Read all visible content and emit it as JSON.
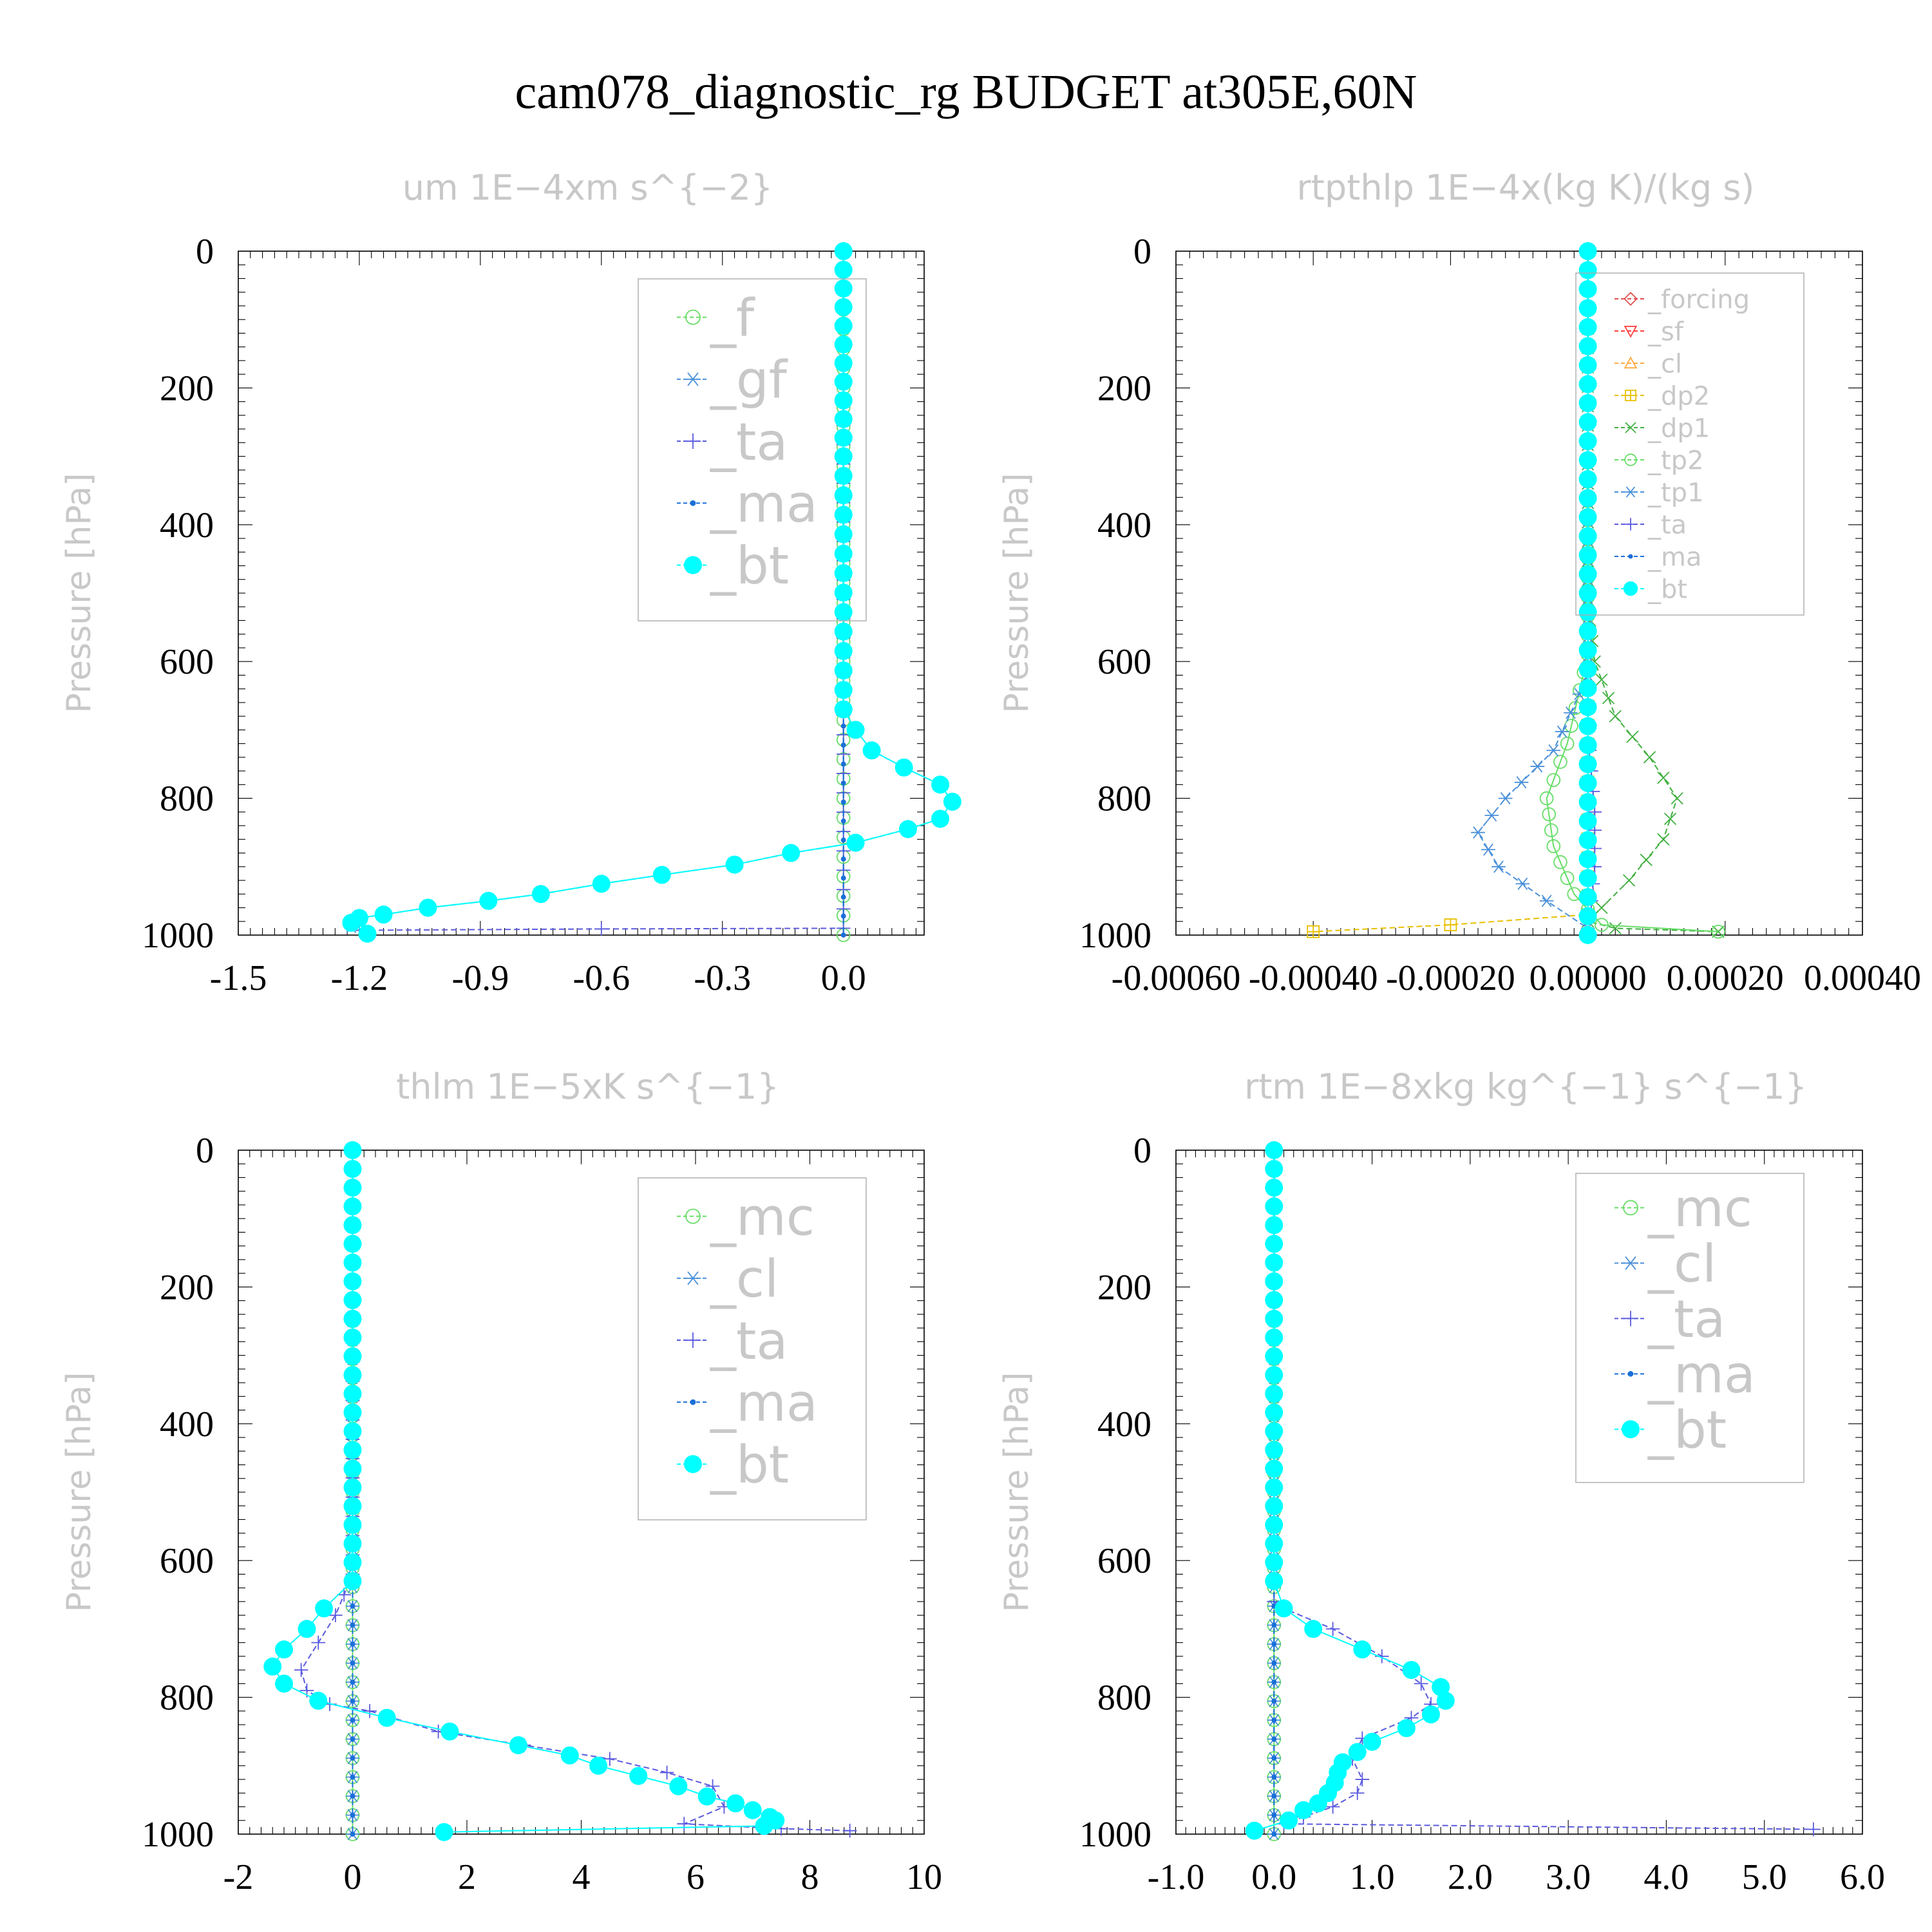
{
  "title": "cam078_diagnostic_rg  BUDGET at305E,60N",
  "colors": {
    "_f": "#66dd66",
    "_gf": "#4a90d9",
    "_ta": "#5a5adf",
    "_ma": "#1a6fd8",
    "_bt": "#00ffff",
    "_mc": "#66dd66",
    "_cl": "#4a90d9",
    "_forcing": "#e05050",
    "_sf": "#ff4040",
    "_cl_rt": "#ffaa40",
    "_dp2": "#e8c000",
    "_dp1": "#40b040",
    "_tp2": "#66dd66",
    "_tp1": "#4a90d9",
    "frame": "#000000",
    "faint": "#c8c8c8",
    "box": "#aaaaaa"
  },
  "chart_data": [
    {
      "type": "line",
      "title": "um  1E−4xm s^{−2}",
      "ylabel": "Pressure [hPa]",
      "xlim": [
        -1.5,
        0.2
      ],
      "ylim": [
        1000,
        0
      ],
      "xticks": [
        "-1.5",
        "-1.2",
        "-0.9",
        "-0.6",
        "-0.3",
        "0.0"
      ],
      "xtick_values": [
        -1.5,
        -1.2,
        -0.9,
        -0.6,
        -0.3,
        0.0
      ],
      "yticks": [
        "0",
        "200",
        "400",
        "600",
        "800",
        "1000"
      ],
      "legend": [
        "_f",
        "_gf",
        "_ta",
        "_ma",
        "_bt"
      ],
      "legend_size": "large",
      "series": [
        {
          "name": "_f",
          "marker": "circle-open",
          "x": [
            0,
            0,
            0,
            0,
            0,
            0
          ],
          "y": [
            0,
            200,
            400,
            600,
            800,
            1000
          ]
        },
        {
          "name": "_gf",
          "marker": "asterisk",
          "x": [
            0,
            0,
            0,
            0.03,
            0.07,
            0.15,
            0.24,
            0.27,
            0.24,
            0.16,
            0.03,
            -0.13,
            -0.27,
            -0.45,
            -0.6,
            -0.75,
            -0.88,
            -1.03,
            -1.14,
            -1.2,
            -1.22,
            -1.22
          ],
          "y": [
            0,
            300,
            670,
            700,
            730,
            755,
            780,
            805,
            830,
            845,
            865,
            880,
            897,
            912,
            925,
            940,
            950,
            960,
            970,
            975,
            982,
            988
          ]
        },
        {
          "name": "_ta",
          "marker": "plus",
          "x": [
            0,
            0,
            -0.6,
            -1.2
          ],
          "y": [
            0,
            990,
            991,
            993
          ]
        },
        {
          "name": "_ma",
          "marker": "dot",
          "x": [
            0,
            0
          ],
          "y": [
            0,
            1000
          ]
        },
        {
          "name": "_bt",
          "marker": "dot-filled",
          "x": [
            0,
            0,
            0,
            0.03,
            0.07,
            0.15,
            0.24,
            0.27,
            0.24,
            0.16,
            0.03,
            -0.13,
            -0.27,
            -0.45,
            -0.6,
            -0.75,
            -0.88,
            -1.03,
            -1.14,
            -1.2,
            -1.22,
            -1.18
          ],
          "y": [
            0,
            300,
            670,
            700,
            730,
            755,
            780,
            805,
            830,
            845,
            865,
            880,
            897,
            912,
            925,
            940,
            950,
            960,
            970,
            975,
            982,
            998
          ]
        }
      ]
    },
    {
      "type": "line",
      "title": "rtpthlp  1E−4x(kg K)/(kg s)",
      "ylabel": "Pressure [hPa]",
      "xlim": [
        -0.0006,
        0.0004
      ],
      "ylim": [
        1000,
        0
      ],
      "xticks": [
        "-0.00060",
        "-0.00040",
        "-0.00020",
        "0.00000",
        "0.00020",
        "0.00040"
      ],
      "xtick_values": [
        -0.0006,
        -0.0004,
        -0.0002,
        0.0,
        0.0002,
        0.0004
      ],
      "yticks": [
        "0",
        "200",
        "400",
        "600",
        "800",
        "1000"
      ],
      "legend": [
        "_forcing",
        "_sf",
        "_cl",
        "_dp2",
        "_dp1",
        "_tp2",
        "_tp1",
        "_ta",
        "_ma",
        "_bt"
      ],
      "legend_size": "small",
      "series": [
        {
          "name": "_forcing",
          "marker": "diamond-open",
          "x": [
            0,
            0
          ],
          "y": [
            0,
            1000
          ]
        },
        {
          "name": "_sf",
          "marker": "triangle-down",
          "x": [
            0,
            0
          ],
          "y": [
            0,
            1000
          ]
        },
        {
          "name": "_cl",
          "marker": "triangle-up",
          "x": [
            0,
            0
          ],
          "y": [
            0,
            1000
          ]
        },
        {
          "name": "_dp2",
          "marker": "square-plus",
          "x": [
            0,
            0,
            -0.0002,
            -0.0004
          ],
          "y": [
            0,
            970,
            985,
            995
          ]
        },
        {
          "name": "_dp1",
          "marker": "x",
          "x": [
            0,
            0,
            1e-05,
            4e-05,
            9e-05,
            0.00013,
            0.00011,
            6e-05,
            2e-05,
            0,
            4e-05,
            0.00019
          ],
          "y": [
            0,
            510,
            600,
            680,
            740,
            800,
            860,
            920,
            960,
            980,
            990,
            995
          ]
        },
        {
          "name": "_tp2",
          "marker": "circle-open",
          "x": [
            0,
            0,
            -3e-05,
            -6e-05,
            -5e-05,
            -2e-05,
            2e-05,
            0.00019
          ],
          "y": [
            0,
            590,
            720,
            800,
            870,
            940,
            985,
            995
          ]
        },
        {
          "name": "_tp1",
          "marker": "asterisk",
          "x": [
            0,
            0,
            -5e-05,
            -0.00012,
            -0.00016,
            -0.00013,
            -6e-05,
            0
          ],
          "y": [
            0,
            620,
            730,
            800,
            850,
            900,
            950,
            990
          ]
        },
        {
          "name": "_ta",
          "marker": "plus",
          "x": [
            0,
            0,
            1e-05,
            1e-05,
            0
          ],
          "y": [
            0,
            700,
            820,
            900,
            1000
          ]
        },
        {
          "name": "_ma",
          "marker": "dot",
          "x": [
            0,
            0
          ],
          "y": [
            0,
            1000
          ]
        },
        {
          "name": "_bt",
          "marker": "dot-filled",
          "x": [
            0,
            0
          ],
          "y": [
            0,
            1000
          ]
        }
      ]
    },
    {
      "type": "line",
      "title": "thlm  1E−5xK s^{−1}",
      "ylabel": "Pressure [hPa]",
      "xlim": [
        -2,
        10
      ],
      "ylim": [
        1000,
        0
      ],
      "xticks": [
        "-2",
        "0",
        "2",
        "4",
        "6",
        "8",
        "10"
      ],
      "xtick_values": [
        -2,
        0,
        2,
        4,
        6,
        8,
        10
      ],
      "yticks": [
        "0",
        "200",
        "400",
        "600",
        "800",
        "1000"
      ],
      "legend": [
        "_mc",
        "_cl",
        "_ta",
        "_ma",
        "_bt"
      ],
      "legend_size": "large",
      "series": [
        {
          "name": "_mc",
          "marker": "circle-open",
          "x": [
            0,
            0
          ],
          "y": [
            0,
            1000
          ]
        },
        {
          "name": "_cl",
          "marker": "asterisk",
          "x": [
            0,
            0
          ],
          "y": [
            0,
            1000
          ]
        },
        {
          "name": "_ta",
          "marker": "plus",
          "x": [
            0,
            0,
            -0.3,
            -0.6,
            -0.9,
            -0.8,
            -0.4,
            0.3,
            1.5,
            3,
            4.5,
            5.5,
            6.3,
            6.5,
            5.8,
            7.5,
            8.7
          ],
          "y": [
            0,
            620,
            680,
            720,
            760,
            790,
            810,
            820,
            850,
            870,
            890,
            910,
            930,
            960,
            985,
            992,
            995
          ]
        },
        {
          "name": "_ma",
          "marker": "dot",
          "x": [
            0,
            0
          ],
          "y": [
            0,
            1000
          ]
        },
        {
          "name": "_bt",
          "marker": "dot-filled",
          "x": [
            0,
            0,
            -0.5,
            -0.8,
            -1.2,
            -1.4,
            -1.2,
            -0.6,
            0.6,
            1.7,
            2.9,
            3.8,
            4.3,
            5.0,
            5.7,
            6.2,
            6.7,
            7.0,
            7.3,
            7.4,
            7.2,
            1.6
          ],
          "y": [
            0,
            630,
            670,
            700,
            730,
            755,
            780,
            805,
            830,
            850,
            870,
            885,
            900,
            915,
            930,
            945,
            955,
            965,
            975,
            980,
            988,
            997
          ]
        }
      ]
    },
    {
      "type": "line",
      "title": "rtm  1E−8xkg kg^{−1} s^{−1}",
      "ylabel": "Pressure [hPa]",
      "xlim": [
        -1.0,
        6.0
      ],
      "ylim": [
        1000,
        0
      ],
      "xticks": [
        "-1.0",
        "0.0",
        "1.0",
        "2.0",
        "3.0",
        "4.0",
        "5.0",
        "6.0"
      ],
      "xtick_values": [
        -1,
        0,
        1,
        2,
        3,
        4,
        5,
        6
      ],
      "yticks": [
        "0",
        "200",
        "400",
        "600",
        "800",
        "1000"
      ],
      "legend": [
        "_mc",
        "_cl",
        "_ta",
        "_ma",
        "_bt"
      ],
      "legend_size": "large",
      "series": [
        {
          "name": "_mc",
          "marker": "circle-open",
          "x": [
            0,
            0
          ],
          "y": [
            0,
            1000
          ]
        },
        {
          "name": "_cl",
          "marker": "asterisk",
          "x": [
            0,
            0
          ],
          "y": [
            0,
            1000
          ]
        },
        {
          "name": "_ta",
          "marker": "plus",
          "x": [
            0,
            0,
            0.1,
            0.6,
            1.1,
            1.5,
            1.6,
            1.4,
            0.9,
            0.8,
            0.9,
            0.85,
            0.6,
            0.3,
            0.1,
            5.5
          ],
          "y": [
            0,
            660,
            670,
            700,
            740,
            780,
            810,
            830,
            860,
            890,
            920,
            940,
            960,
            975,
            985,
            993
          ]
        },
        {
          "name": "_ma",
          "marker": "dot",
          "x": [
            0,
            0
          ],
          "y": [
            0,
            1000
          ]
        },
        {
          "name": "_bt",
          "marker": "dot-filled",
          "x": [
            0,
            0,
            0.1,
            0.4,
            0.9,
            1.4,
            1.7,
            1.75,
            1.6,
            1.35,
            1.0,
            0.85,
            0.7,
            0.65,
            0.62,
            0.55,
            0.45,
            0.3,
            0.15,
            -0.2
          ],
          "y": [
            0,
            630,
            670,
            700,
            730,
            760,
            785,
            805,
            825,
            845,
            865,
            880,
            895,
            910,
            925,
            940,
            955,
            965,
            980,
            995
          ]
        }
      ]
    }
  ]
}
